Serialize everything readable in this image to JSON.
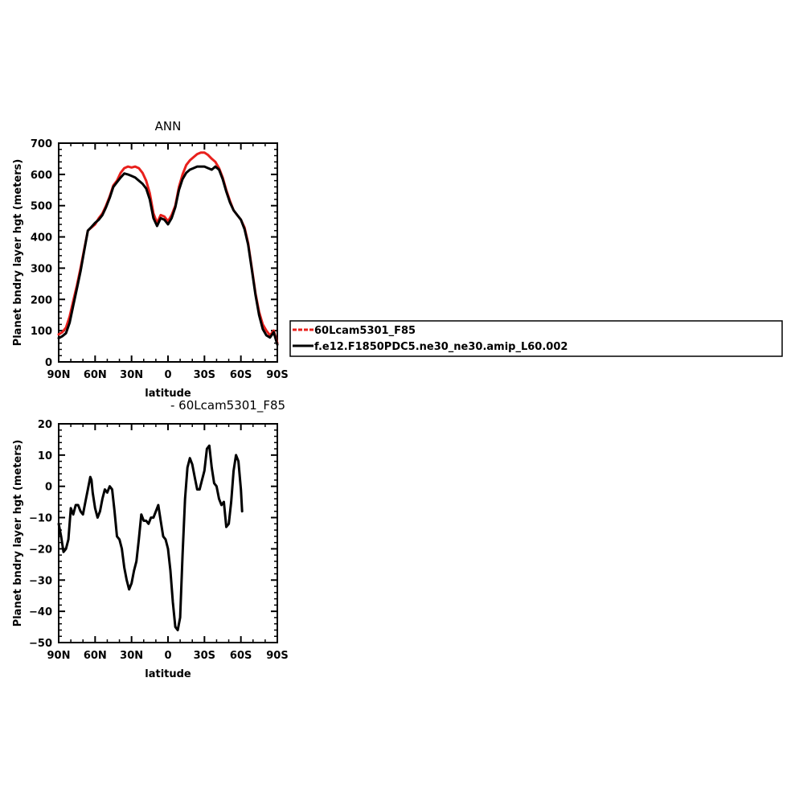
{
  "colors": {
    "red_series": "#e8201c",
    "black_series": "#000000",
    "frame": "#000000",
    "background": "#ffffff"
  },
  "chart_data": [
    {
      "type": "line",
      "title": "ANN",
      "xlabel": "latitude",
      "ylabel": "Planet bndry layer hgt (meters)",
      "xlim": [
        90,
        -90
      ],
      "ylim": [
        0,
        700
      ],
      "x_ticks": [
        90,
        60,
        30,
        0,
        -30,
        -60,
        -90
      ],
      "x_tick_labels": [
        "90N",
        "60N",
        "30N",
        "0",
        "30S",
        "60S",
        "90S"
      ],
      "y_ticks": [
        0,
        100,
        200,
        300,
        400,
        500,
        600,
        700
      ],
      "y_tick_labels": [
        "0",
        "100",
        "200",
        "300",
        "400",
        "500",
        "600",
        "700"
      ],
      "grid": false,
      "legend": "right",
      "series": [
        {
          "name": "60Lcam5301_F85",
          "color": "#e8201c",
          "style": "dashed",
          "points": [
            [
              90,
              88
            ],
            [
              87,
              95
            ],
            [
              84,
              110
            ],
            [
              81,
              145
            ],
            [
              78,
              195
            ],
            [
              75,
              245
            ],
            [
              72,
              300
            ],
            [
              69,
              360
            ],
            [
              66,
              420
            ],
            [
              63,
              430
            ],
            [
              60,
              440
            ],
            [
              57,
              460
            ],
            [
              54,
              475
            ],
            [
              51,
              500
            ],
            [
              48,
              530
            ],
            [
              45,
              565
            ],
            [
              42,
              580
            ],
            [
              39,
              605
            ],
            [
              36,
              620
            ],
            [
              33,
              625
            ],
            [
              30,
              622
            ],
            [
              27,
              625
            ],
            [
              24,
              620
            ],
            [
              21,
              605
            ],
            [
              18,
              580
            ],
            [
              15,
              540
            ],
            [
              12,
              475
            ],
            [
              9,
              445
            ],
            [
              6,
              470
            ],
            [
              3,
              465
            ],
            [
              0,
              450
            ],
            [
              -3,
              470
            ],
            [
              -6,
              500
            ],
            [
              -9,
              560
            ],
            [
              -12,
              600
            ],
            [
              -15,
              630
            ],
            [
              -18,
              645
            ],
            [
              -21,
              655
            ],
            [
              -24,
              665
            ],
            [
              -27,
              670
            ],
            [
              -30,
              670
            ],
            [
              -33,
              662
            ],
            [
              -36,
              650
            ],
            [
              -39,
              640
            ],
            [
              -42,
              620
            ],
            [
              -45,
              590
            ],
            [
              -48,
              550
            ],
            [
              -51,
              515
            ],
            [
              -54,
              485
            ],
            [
              -57,
              470
            ],
            [
              -60,
              455
            ],
            [
              -63,
              430
            ],
            [
              -66,
              380
            ],
            [
              -69,
              300
            ],
            [
              -72,
              220
            ],
            [
              -75,
              160
            ],
            [
              -78,
              120
            ],
            [
              -81,
              100
            ],
            [
              -84,
              85
            ],
            [
              -87,
              100
            ],
            [
              -90,
              60
            ]
          ]
        },
        {
          "name": "f.e12.F1850PDC5.ne30_ne30.amip_L60.002",
          "color": "#000000",
          "style": "solid",
          "points": [
            [
              90,
              76
            ],
            [
              87,
              82
            ],
            [
              84,
              92
            ],
            [
              81,
              125
            ],
            [
              78,
              180
            ],
            [
              75,
              235
            ],
            [
              72,
              290
            ],
            [
              69,
              355
            ],
            [
              66,
              420
            ],
            [
              63,
              432
            ],
            [
              60,
              445
            ],
            [
              57,
              455
            ],
            [
              54,
              470
            ],
            [
              51,
              495
            ],
            [
              48,
              525
            ],
            [
              45,
              560
            ],
            [
              42,
              575
            ],
            [
              39,
              590
            ],
            [
              36,
              603
            ],
            [
              33,
              600
            ],
            [
              30,
              595
            ],
            [
              27,
              590
            ],
            [
              24,
              580
            ],
            [
              21,
              570
            ],
            [
              18,
              555
            ],
            [
              15,
              520
            ],
            [
              12,
              460
            ],
            [
              9,
              435
            ],
            [
              6,
              460
            ],
            [
              3,
              455
            ],
            [
              0,
              440
            ],
            [
              -3,
              460
            ],
            [
              -6,
              495
            ],
            [
              -9,
              550
            ],
            [
              -12,
              585
            ],
            [
              -15,
              605
            ],
            [
              -18,
              615
            ],
            [
              -21,
              620
            ],
            [
              -24,
              625
            ],
            [
              -27,
              625
            ],
            [
              -30,
              625
            ],
            [
              -33,
              620
            ],
            [
              -36,
              615
            ],
            [
              -39,
              625
            ],
            [
              -42,
              615
            ],
            [
              -45,
              585
            ],
            [
              -48,
              545
            ],
            [
              -51,
              510
            ],
            [
              -54,
              485
            ],
            [
              -57,
              470
            ],
            [
              -60,
              455
            ],
            [
              -63,
              425
            ],
            [
              -66,
              375
            ],
            [
              -69,
              295
            ],
            [
              -72,
              215
            ],
            [
              -75,
              150
            ],
            [
              -78,
              105
            ],
            [
              -81,
              85
            ],
            [
              -84,
              78
            ],
            [
              -87,
              95
            ],
            [
              -90,
              55
            ]
          ]
        }
      ]
    },
    {
      "type": "line",
      "title": "- 60Lcam5301_F85",
      "xlabel": "latitude",
      "ylabel": "Planet bndry layer hgt (meters)",
      "xlim": [
        90,
        -90
      ],
      "ylim": [
        -50,
        20
      ],
      "x_ticks": [
        90,
        60,
        30,
        0,
        -30,
        -60,
        -90
      ],
      "x_tick_labels": [
        "90N",
        "60N",
        "30N",
        "0",
        "30S",
        "60S",
        "90S"
      ],
      "y_ticks": [
        -50,
        -40,
        -30,
        -20,
        -10,
        0,
        10,
        20
      ],
      "y_tick_labels": [
        "−50",
        "−40",
        "−30",
        "−20",
        "−10",
        "0",
        "10",
        "20"
      ],
      "grid": false,
      "series": [
        {
          "color": "#000000",
          "style": "solid",
          "points": [
            [
              90,
              -12
            ],
            [
              88,
              -16
            ],
            [
              86,
              -21
            ],
            [
              84,
              -20
            ],
            [
              82,
              -17
            ],
            [
              80,
              -7
            ],
            [
              78,
              -9
            ],
            [
              76,
              -6
            ],
            [
              74,
              -6
            ],
            [
              72,
              -8
            ],
            [
              70,
              -9
            ],
            [
              68,
              -5
            ],
            [
              66,
              -1
            ],
            [
              64,
              3
            ],
            [
              63,
              2
            ],
            [
              62,
              -2
            ],
            [
              60,
              -7
            ],
            [
              58,
              -10
            ],
            [
              56,
              -8
            ],
            [
              54,
              -4
            ],
            [
              52,
              -1
            ],
            [
              50,
              -2
            ],
            [
              48,
              0
            ],
            [
              46,
              -1
            ],
            [
              44,
              -8
            ],
            [
              42,
              -16
            ],
            [
              40,
              -17
            ],
            [
              38,
              -20
            ],
            [
              36,
              -26
            ],
            [
              34,
              -30
            ],
            [
              32,
              -33
            ],
            [
              30,
              -31
            ],
            [
              28,
              -27
            ],
            [
              26,
              -24
            ],
            [
              24,
              -17
            ],
            [
              22,
              -9
            ],
            [
              20,
              -11
            ],
            [
              18,
              -11
            ],
            [
              16,
              -12
            ],
            [
              14,
              -10
            ],
            [
              12,
              -10
            ],
            [
              10,
              -8
            ],
            [
              8,
              -6
            ],
            [
              6,
              -11
            ],
            [
              4,
              -16
            ],
            [
              2,
              -17
            ],
            [
              0,
              -20
            ],
            [
              -2,
              -27
            ],
            [
              -4,
              -37
            ],
            [
              -6,
              -45
            ],
            [
              -8,
              -46
            ],
            [
              -10,
              -42
            ],
            [
              -12,
              -22
            ],
            [
              -14,
              -4
            ],
            [
              -16,
              6
            ],
            [
              -18,
              9
            ],
            [
              -20,
              7
            ],
            [
              -22,
              3
            ],
            [
              -24,
              -1
            ],
            [
              -26,
              -1
            ],
            [
              -28,
              2
            ],
            [
              -30,
              5
            ],
            [
              -32,
              12
            ],
            [
              -34,
              13
            ],
            [
              -36,
              6
            ],
            [
              -38,
              1
            ],
            [
              -40,
              0
            ],
            [
              -42,
              -4
            ],
            [
              -44,
              -6
            ],
            [
              -46,
              -5
            ],
            [
              -48,
              -13
            ],
            [
              -50,
              -12
            ],
            [
              -52,
              -5
            ],
            [
              -54,
              5
            ],
            [
              -56,
              10
            ],
            [
              -58,
              8
            ],
            [
              -60,
              -1
            ],
            [
              -61,
              -8
            ]
          ]
        }
      ]
    }
  ]
}
